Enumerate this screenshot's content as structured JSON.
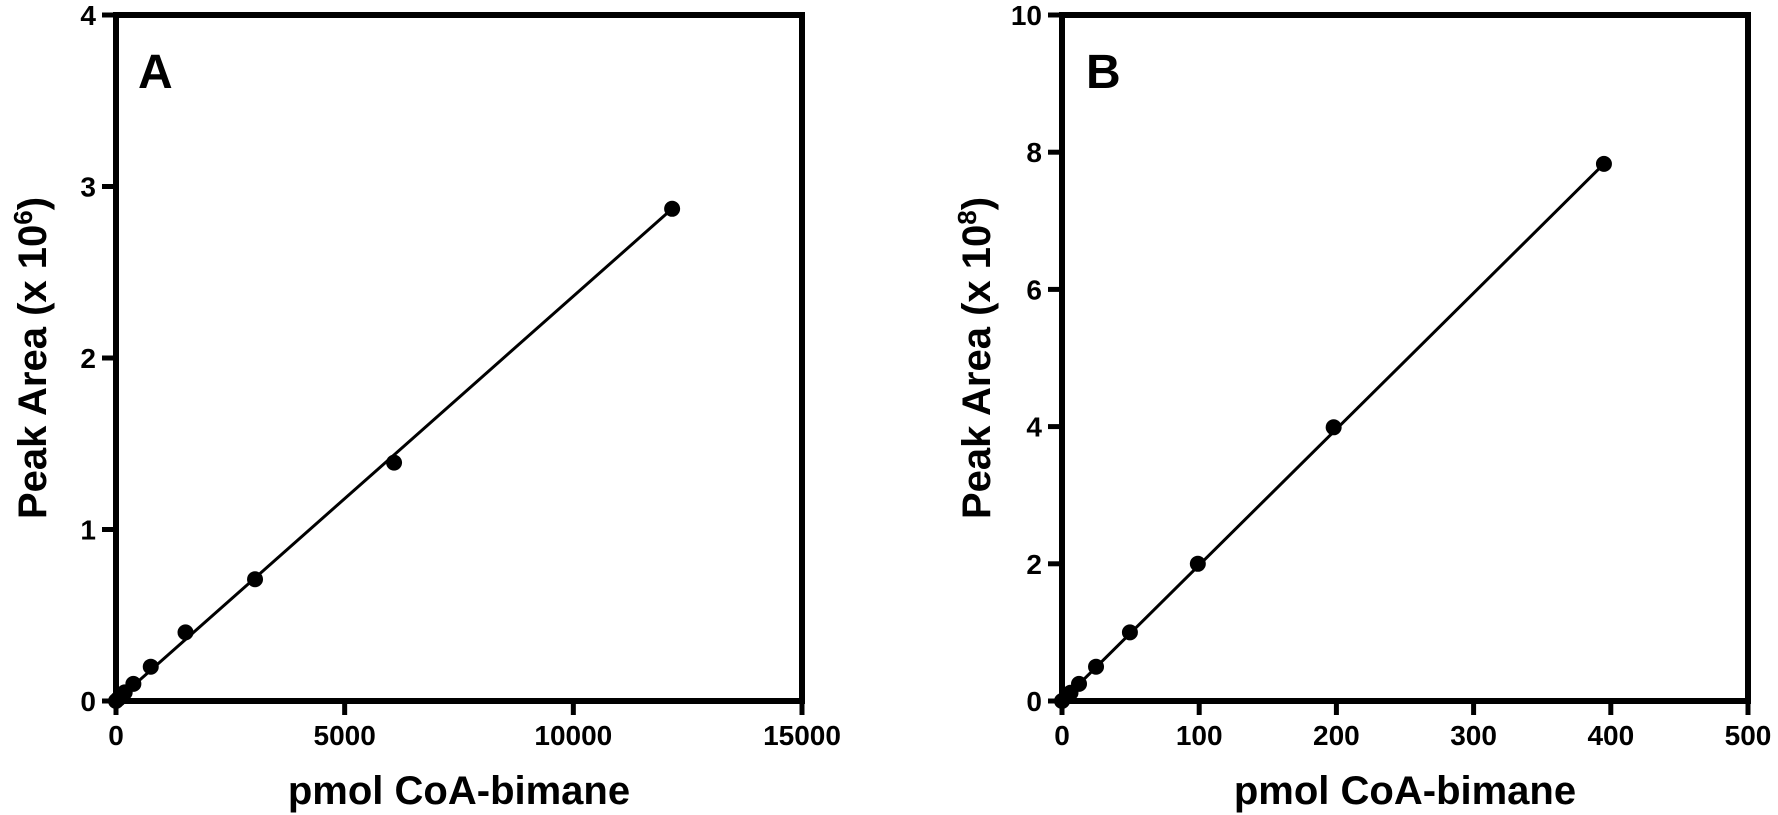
{
  "chart_data": [
    {
      "type": "scatter",
      "panel_label": "A",
      "xlabel": "pmol CoA-bimane",
      "ylabel_main": "Peak Area (x 10",
      "ylabel_exp": "6",
      "ylabel_close": ")",
      "xlim": [
        0,
        15000
      ],
      "ylim": [
        0,
        4
      ],
      "xticks": [
        "0",
        "5000",
        "10000",
        "15000"
      ],
      "yticks": [
        "0",
        "1",
        "2",
        "3",
        "4"
      ],
      "xtick_values": [
        0,
        5000,
        10000,
        15000
      ],
      "ytick_values": [
        0,
        1,
        2,
        3,
        4
      ],
      "grid": false,
      "series": [
        {
          "points": [
            {
              "x": 0,
              "y": 0.0
            },
            {
              "x": 48,
              "y": 0.012
            },
            {
              "x": 95,
              "y": 0.024
            },
            {
              "x": 190,
              "y": 0.05
            },
            {
              "x": 380,
              "y": 0.1
            },
            {
              "x": 760,
              "y": 0.2
            },
            {
              "x": 1520,
              "y": 0.4
            },
            {
              "x": 3040,
              "y": 0.71
            },
            {
              "x": 6080,
              "y": 1.39
            },
            {
              "x": 12160,
              "y": 2.87
            }
          ],
          "fit_line": {
            "x": [
              0,
              12160
            ],
            "y": [
              0.0,
              2.87
            ]
          }
        }
      ]
    },
    {
      "type": "scatter",
      "panel_label": "B",
      "xlabel": "pmol CoA-bimane",
      "ylabel_main": "Peak Area (x 10",
      "ylabel_exp": "8",
      "ylabel_close": ")",
      "xlim": [
        0,
        500
      ],
      "ylim": [
        0,
        10
      ],
      "xticks": [
        "0",
        "100",
        "200",
        "300",
        "400",
        "500"
      ],
      "yticks": [
        "0",
        "2",
        "4",
        "6",
        "8",
        "10"
      ],
      "xtick_values": [
        0,
        100,
        200,
        300,
        400,
        500
      ],
      "ytick_values": [
        0,
        2,
        4,
        6,
        8,
        10
      ],
      "grid": false,
      "series": [
        {
          "points": [
            {
              "x": 0,
              "y": 0.0
            },
            {
              "x": 3.1,
              "y": 0.06
            },
            {
              "x": 6.2,
              "y": 0.12
            },
            {
              "x": 12.4,
              "y": 0.25
            },
            {
              "x": 24.8,
              "y": 0.5
            },
            {
              "x": 49.5,
              "y": 1.0
            },
            {
              "x": 99,
              "y": 2.0
            },
            {
              "x": 198,
              "y": 3.99
            },
            {
              "x": 395,
              "y": 7.83
            }
          ],
          "fit_line": {
            "x": [
              0,
              395
            ],
            "y": [
              0.0,
              7.83
            ]
          }
        }
      ]
    }
  ]
}
